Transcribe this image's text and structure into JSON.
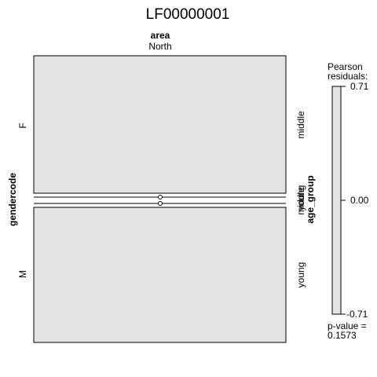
{
  "chart_data": {
    "type": "mosaic",
    "title": "LF00000001",
    "top_variable": "area",
    "top_levels": [
      "North"
    ],
    "row_variable": "gendercode",
    "row_levels": [
      "F",
      "M"
    ],
    "right_variable": "age_group",
    "cells": [
      {
        "gender": "F",
        "age_group": "middle",
        "area": "North",
        "count_share": 0.5,
        "residual": 0.0
      },
      {
        "gender": "F",
        "age_group": "young",
        "area": "North",
        "count_share": 0.0,
        "residual": 0.0
      },
      {
        "gender": "M",
        "age_group": "middle",
        "area": "North",
        "count_share": 0.0,
        "residual": 0.0
      },
      {
        "gender": "M",
        "age_group": "young",
        "area": "North",
        "count_share": 0.5,
        "residual": 0.0
      }
    ],
    "right_labels": [
      {
        "text": "middle",
        "ref": "F-middle"
      },
      {
        "text": "young",
        "ref": "F-young"
      },
      {
        "text": "middle",
        "ref": "M-middle"
      },
      {
        "text": "young",
        "ref": "M-young"
      }
    ],
    "legend": {
      "title_line1": "Pearson",
      "title_line2": "residuals:",
      "ticks": [
        "0.71",
        "0.00",
        "-0.71"
      ],
      "tick_values": [
        0.71,
        0.0,
        -0.71
      ],
      "p_value_label": "p-value =",
      "p_value": "0.1573"
    },
    "fill_color": "#e3e3e3",
    "legend_fill_color": "#e3e3e3"
  }
}
